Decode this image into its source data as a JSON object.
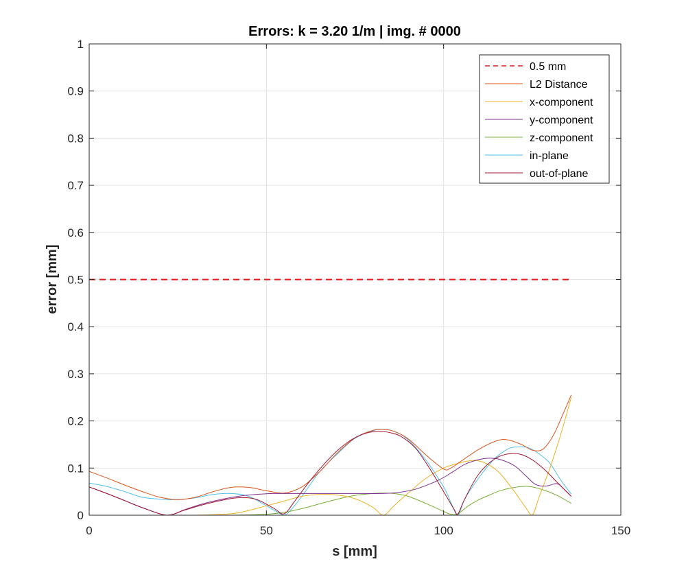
{
  "chart_data": {
    "type": "line",
    "title": "Errors: k = 3.20 1/m | img. # 0000",
    "xlabel": "s [mm]",
    "ylabel": "error [mm]",
    "xlim": [
      0,
      150
    ],
    "ylim": [
      0,
      1
    ],
    "xticks": [
      0,
      50,
      100,
      150
    ],
    "yticks": [
      0,
      0.1,
      0.2,
      0.3,
      0.4,
      0.5,
      0.6,
      0.7,
      0.8,
      0.9,
      1
    ],
    "xtick_labels": [
      "0",
      "50",
      "100",
      "150"
    ],
    "ytick_labels": [
      "0",
      "0.1",
      "0.2",
      "0.3",
      "0.4",
      "0.5",
      "0.6",
      "0.7",
      "0.8",
      "0.9",
      "1"
    ],
    "grid": true,
    "legend_position": "top-right",
    "series": [
      {
        "name": "0.5 mm",
        "color": "#e41a1c",
        "dashed": true,
        "x": [
          0,
          136
        ],
        "y": [
          0.5,
          0.5
        ]
      },
      {
        "name": "L2 Distance",
        "color": "#d95319",
        "x": [
          0,
          5,
          10,
          15,
          20,
          25,
          30,
          35,
          40,
          45,
          50,
          55,
          60,
          65,
          70,
          75,
          80,
          83,
          86,
          90,
          95,
          100,
          102,
          105,
          110,
          115,
          118,
          122,
          125,
          128,
          131,
          134,
          136
        ],
        "y": [
          0.093,
          0.079,
          0.064,
          0.05,
          0.038,
          0.033,
          0.038,
          0.05,
          0.059,
          0.059,
          0.052,
          0.047,
          0.06,
          0.092,
          0.132,
          0.164,
          0.18,
          0.182,
          0.178,
          0.162,
          0.128,
          0.098,
          0.1,
          0.115,
          0.14,
          0.158,
          0.16,
          0.15,
          0.138,
          0.14,
          0.17,
          0.22,
          0.255
        ]
      },
      {
        "name": "x-component",
        "color": "#edb120",
        "x": [
          0,
          10,
          20,
          30,
          40,
          45,
          50,
          55,
          60,
          65,
          70,
          75,
          80,
          83,
          86,
          90,
          95,
          100,
          105,
          108,
          110,
          113,
          116,
          120,
          123,
          125,
          127,
          130,
          133,
          136
        ],
        "y": [
          0,
          0,
          0,
          0,
          0.003,
          0.01,
          0.02,
          0.03,
          0.04,
          0.044,
          0.043,
          0.035,
          0.017,
          0,
          0.02,
          0.047,
          0.078,
          0.1,
          0.112,
          0.116,
          0.115,
          0.106,
          0.088,
          0.05,
          0.018,
          0,
          0.04,
          0.1,
          0.17,
          0.25
        ]
      },
      {
        "name": "y-component",
        "color": "#7e2f8e",
        "x": [
          0,
          5,
          10,
          15,
          22,
          27,
          32,
          37,
          42,
          47,
          52,
          57,
          62,
          67,
          72,
          77,
          82,
          87,
          92,
          97,
          100,
          103,
          106,
          110,
          113,
          116,
          120,
          123,
          126,
          129,
          132,
          134,
          136
        ],
        "y": [
          0.06,
          0.046,
          0.031,
          0.016,
          0,
          0.012,
          0.024,
          0.033,
          0.04,
          0.044,
          0.046,
          0.046,
          0.046,
          0.046,
          0.046,
          0.046,
          0.046,
          0.048,
          0.055,
          0.069,
          0.08,
          0.094,
          0.108,
          0.118,
          0.121,
          0.118,
          0.105,
          0.085,
          0.065,
          0.062,
          0.067,
          0.055,
          0.04
        ]
      },
      {
        "name": "z-component",
        "color": "#77ac30",
        "x": [
          0,
          10,
          20,
          30,
          40,
          50,
          55,
          60,
          65,
          70,
          75,
          80,
          83,
          86,
          90,
          95,
          100,
          102,
          104,
          107,
          110,
          113,
          116,
          120,
          124,
          128,
          132,
          136
        ],
        "y": [
          0,
          0,
          0,
          0,
          0,
          0.002,
          0.006,
          0.014,
          0.024,
          0.034,
          0.042,
          0.046,
          0.047,
          0.046,
          0.04,
          0.025,
          0.008,
          0.002,
          0.003,
          0.02,
          0.033,
          0.043,
          0.052,
          0.059,
          0.061,
          0.054,
          0.042,
          0.025
        ]
      },
      {
        "name": "in-plane",
        "color": "#4dbeee",
        "x": [
          0,
          5,
          10,
          15,
          20,
          25,
          30,
          35,
          40,
          45,
          50,
          53,
          55,
          57,
          60,
          65,
          70,
          75,
          80,
          83,
          86,
          90,
          95,
          100,
          102,
          104,
          106,
          110,
          114,
          118,
          121,
          124,
          127,
          130,
          133,
          136
        ],
        "y": [
          0.068,
          0.061,
          0.05,
          0.038,
          0.034,
          0.033,
          0.037,
          0.044,
          0.046,
          0.04,
          0.02,
          0.007,
          0,
          0.012,
          0.04,
          0.092,
          0.13,
          0.163,
          0.179,
          0.182,
          0.178,
          0.16,
          0.117,
          0.06,
          0.028,
          0,
          0.035,
          0.08,
          0.117,
          0.14,
          0.145,
          0.143,
          0.13,
          0.11,
          0.075,
          0.045
        ]
      },
      {
        "name": "out-of-plane",
        "color": "#a2142f",
        "x": [
          0,
          5,
          10,
          15,
          22,
          27,
          32,
          37,
          42,
          47,
          52,
          55,
          58,
          62,
          66,
          70,
          74,
          78,
          82,
          85,
          88,
          92,
          96,
          100,
          103,
          104,
          106,
          110,
          115,
          120,
          124,
          128,
          132,
          136
        ],
        "y": [
          0.06,
          0.046,
          0.031,
          0.016,
          0,
          0.011,
          0.022,
          0.031,
          0.037,
          0.034,
          0.015,
          0.003,
          0.03,
          0.07,
          0.106,
          0.137,
          0.16,
          0.174,
          0.178,
          0.175,
          0.167,
          0.143,
          0.1,
          0.05,
          0.012,
          0.002,
          0.035,
          0.088,
          0.122,
          0.131,
          0.122,
          0.1,
          0.07,
          0.04
        ]
      }
    ]
  }
}
